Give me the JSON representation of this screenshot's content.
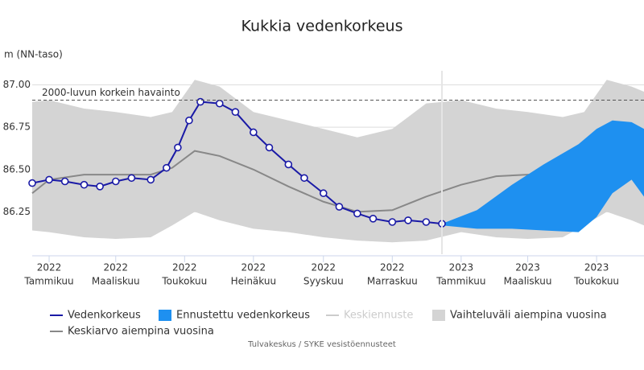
{
  "chart_data": {
    "type": "line",
    "title": "Kukkia vedenkorkeus",
    "y_axis_label": "m (NN-taso)",
    "source": "Tulvakeskus / SYKE vesistöennusteet",
    "xlim": [
      "2021-12-17",
      "2023-06-12"
    ],
    "xticks": [
      {
        "value": "2022-01-01",
        "label": [
          "2022",
          "Tammikuu"
        ]
      },
      {
        "value": "2022-03-01",
        "label": [
          "2022",
          "Maaliskuu"
        ]
      },
      {
        "value": "2022-05-01",
        "label": [
          "2022",
          "Toukokuu"
        ]
      },
      {
        "value": "2022-07-01",
        "label": [
          "2022",
          "Heinäkuu"
        ]
      },
      {
        "value": "2022-09-01",
        "label": [
          "2022",
          "Syyskuu"
        ]
      },
      {
        "value": "2022-11-01",
        "label": [
          "2022",
          "Marraskuu"
        ]
      },
      {
        "value": "2023-01-01",
        "label": [
          "2023",
          "Tammikuu"
        ]
      },
      {
        "value": "2023-03-01",
        "label": [
          "2023",
          "Maaliskuu"
        ]
      },
      {
        "value": "2023-05-01",
        "label": [
          "2023",
          "Toukokuu"
        ]
      }
    ],
    "ylim": [
      86.0,
      87.05
    ],
    "yticks": [
      {
        "value": 86.25,
        "label": "86.25"
      },
      {
        "value": 86.5,
        "label": "86.50"
      },
      {
        "value": 86.75,
        "label": "86.75"
      },
      {
        "value": 87.0,
        "label": "87.00"
      }
    ],
    "grid": true,
    "annotations": [
      {
        "text": "2000-luvun korkein havainto",
        "value": 86.91
      }
    ],
    "series": [
      {
        "name": "Vedenkorkeus",
        "color": "#1a1aa6",
        "kind": "line",
        "markers": true,
        "x": [
          "2021-12-17",
          "2022-01-01",
          "2022-01-15",
          "2022-02-01",
          "2022-02-15",
          "2022-03-01",
          "2022-03-15",
          "2022-04-01",
          "2022-04-15",
          "2022-04-25",
          "2022-05-05",
          "2022-05-15",
          "2022-06-01",
          "2022-06-15",
          "2022-07-01",
          "2022-07-15",
          "2022-08-01",
          "2022-08-15",
          "2022-09-01",
          "2022-09-15",
          "2022-10-01",
          "2022-10-15",
          "2022-11-01",
          "2022-11-15",
          "2022-12-01",
          "2022-12-15"
        ],
        "values": [
          86.42,
          86.44,
          86.43,
          86.41,
          86.4,
          86.43,
          86.45,
          86.44,
          86.51,
          86.63,
          86.79,
          86.9,
          86.89,
          86.84,
          86.72,
          86.63,
          86.53,
          86.45,
          86.36,
          86.28,
          86.24,
          86.21,
          86.19,
          86.2,
          86.19,
          86.18
        ]
      },
      {
        "name": "Ennustettu vedenkorkeus",
        "color": "#1e90f0",
        "kind": "band",
        "x": [
          "2022-12-15",
          "2023-01-15",
          "2023-02-15",
          "2023-03-15",
          "2023-04-15",
          "2023-05-01",
          "2023-05-15",
          "2023-06-01",
          "2023-06-12"
        ],
        "upper": [
          86.18,
          86.26,
          86.41,
          86.53,
          86.65,
          86.74,
          86.79,
          86.78,
          86.74
        ],
        "lower": [
          86.17,
          86.15,
          86.15,
          86.14,
          86.13,
          86.22,
          86.36,
          86.44,
          86.34
        ]
      },
      {
        "name": "Keskiennuste",
        "color": "#cccccc",
        "kind": "line",
        "hidden": true
      },
      {
        "name": "Vaihteluväli aiempina vuosina",
        "color": "#d4d4d4",
        "kind": "band",
        "x": [
          "2021-12-17",
          "2022-01-01",
          "2022-02-01",
          "2022-03-01",
          "2022-04-01",
          "2022-04-20",
          "2022-05-10",
          "2022-06-01",
          "2022-07-01",
          "2022-08-01",
          "2022-09-01",
          "2022-10-01",
          "2022-11-01",
          "2022-12-01",
          "2023-01-01",
          "2023-02-01",
          "2023-03-01",
          "2023-04-01",
          "2023-04-20",
          "2023-05-10",
          "2023-06-01",
          "2023-06-12"
        ],
        "upper": [
          86.9,
          86.91,
          86.86,
          86.84,
          86.81,
          86.84,
          87.03,
          86.99,
          86.84,
          86.79,
          86.74,
          86.69,
          86.74,
          86.89,
          86.91,
          86.86,
          86.84,
          86.81,
          86.84,
          87.03,
          86.99,
          86.96
        ],
        "lower": [
          86.14,
          86.13,
          86.1,
          86.09,
          86.1,
          86.17,
          86.25,
          86.2,
          86.15,
          86.13,
          86.1,
          86.08,
          86.07,
          86.08,
          86.13,
          86.1,
          86.09,
          86.1,
          86.17,
          86.25,
          86.2,
          86.17
        ]
      },
      {
        "name": "Keskiarvo aiempina vuosina",
        "color": "#888888",
        "kind": "line",
        "x": [
          "2021-12-17",
          "2022-01-01",
          "2022-02-01",
          "2022-03-01",
          "2022-04-01",
          "2022-04-20",
          "2022-05-10",
          "2022-06-01",
          "2022-07-01",
          "2022-08-01",
          "2022-09-01",
          "2022-10-01",
          "2022-11-01",
          "2022-12-01",
          "2023-01-01",
          "2023-02-01",
          "2023-03-01",
          "2023-04-01",
          "2023-04-20",
          "2023-05-10",
          "2023-06-01",
          "2023-06-12"
        ],
        "values": [
          86.36,
          86.44,
          86.47,
          86.47,
          86.47,
          86.51,
          86.61,
          86.58,
          86.5,
          86.4,
          86.31,
          86.25,
          86.26,
          86.34,
          86.41,
          86.46,
          86.47,
          86.47,
          86.51,
          86.61,
          86.58,
          86.55
        ]
      }
    ]
  }
}
